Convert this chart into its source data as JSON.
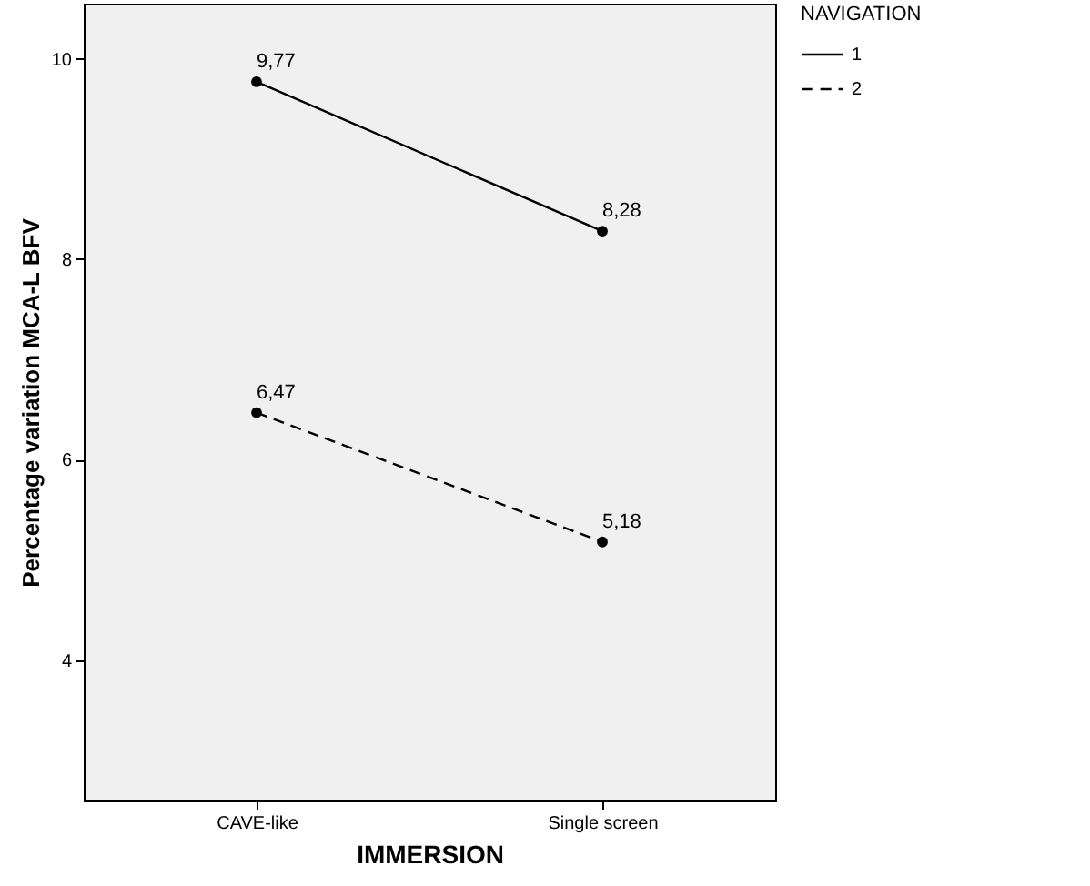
{
  "chart_data": {
    "type": "line",
    "xlabel": "IMMERSION",
    "ylabel": "Percentage variation MCA-L BFV",
    "legend_title": "NAVIGATION",
    "categories": [
      "CAVE-like",
      "Single screen"
    ],
    "series": [
      {
        "name": "1",
        "color": "#000000",
        "line_style": "solid",
        "values": [
          9.77,
          8.28
        ],
        "value_labels": [
          "9,77",
          "8,28"
        ]
      },
      {
        "name": "2",
        "color": "#000000",
        "line_style": "dashed",
        "values": [
          6.47,
          5.18
        ],
        "value_labels": [
          "6,47",
          "5,18"
        ]
      }
    ],
    "ylim": [
      2.6,
      10.55
    ],
    "yticks": [
      4,
      6,
      8,
      10
    ],
    "grid": false,
    "legend": "right",
    "marker": "circle"
  }
}
